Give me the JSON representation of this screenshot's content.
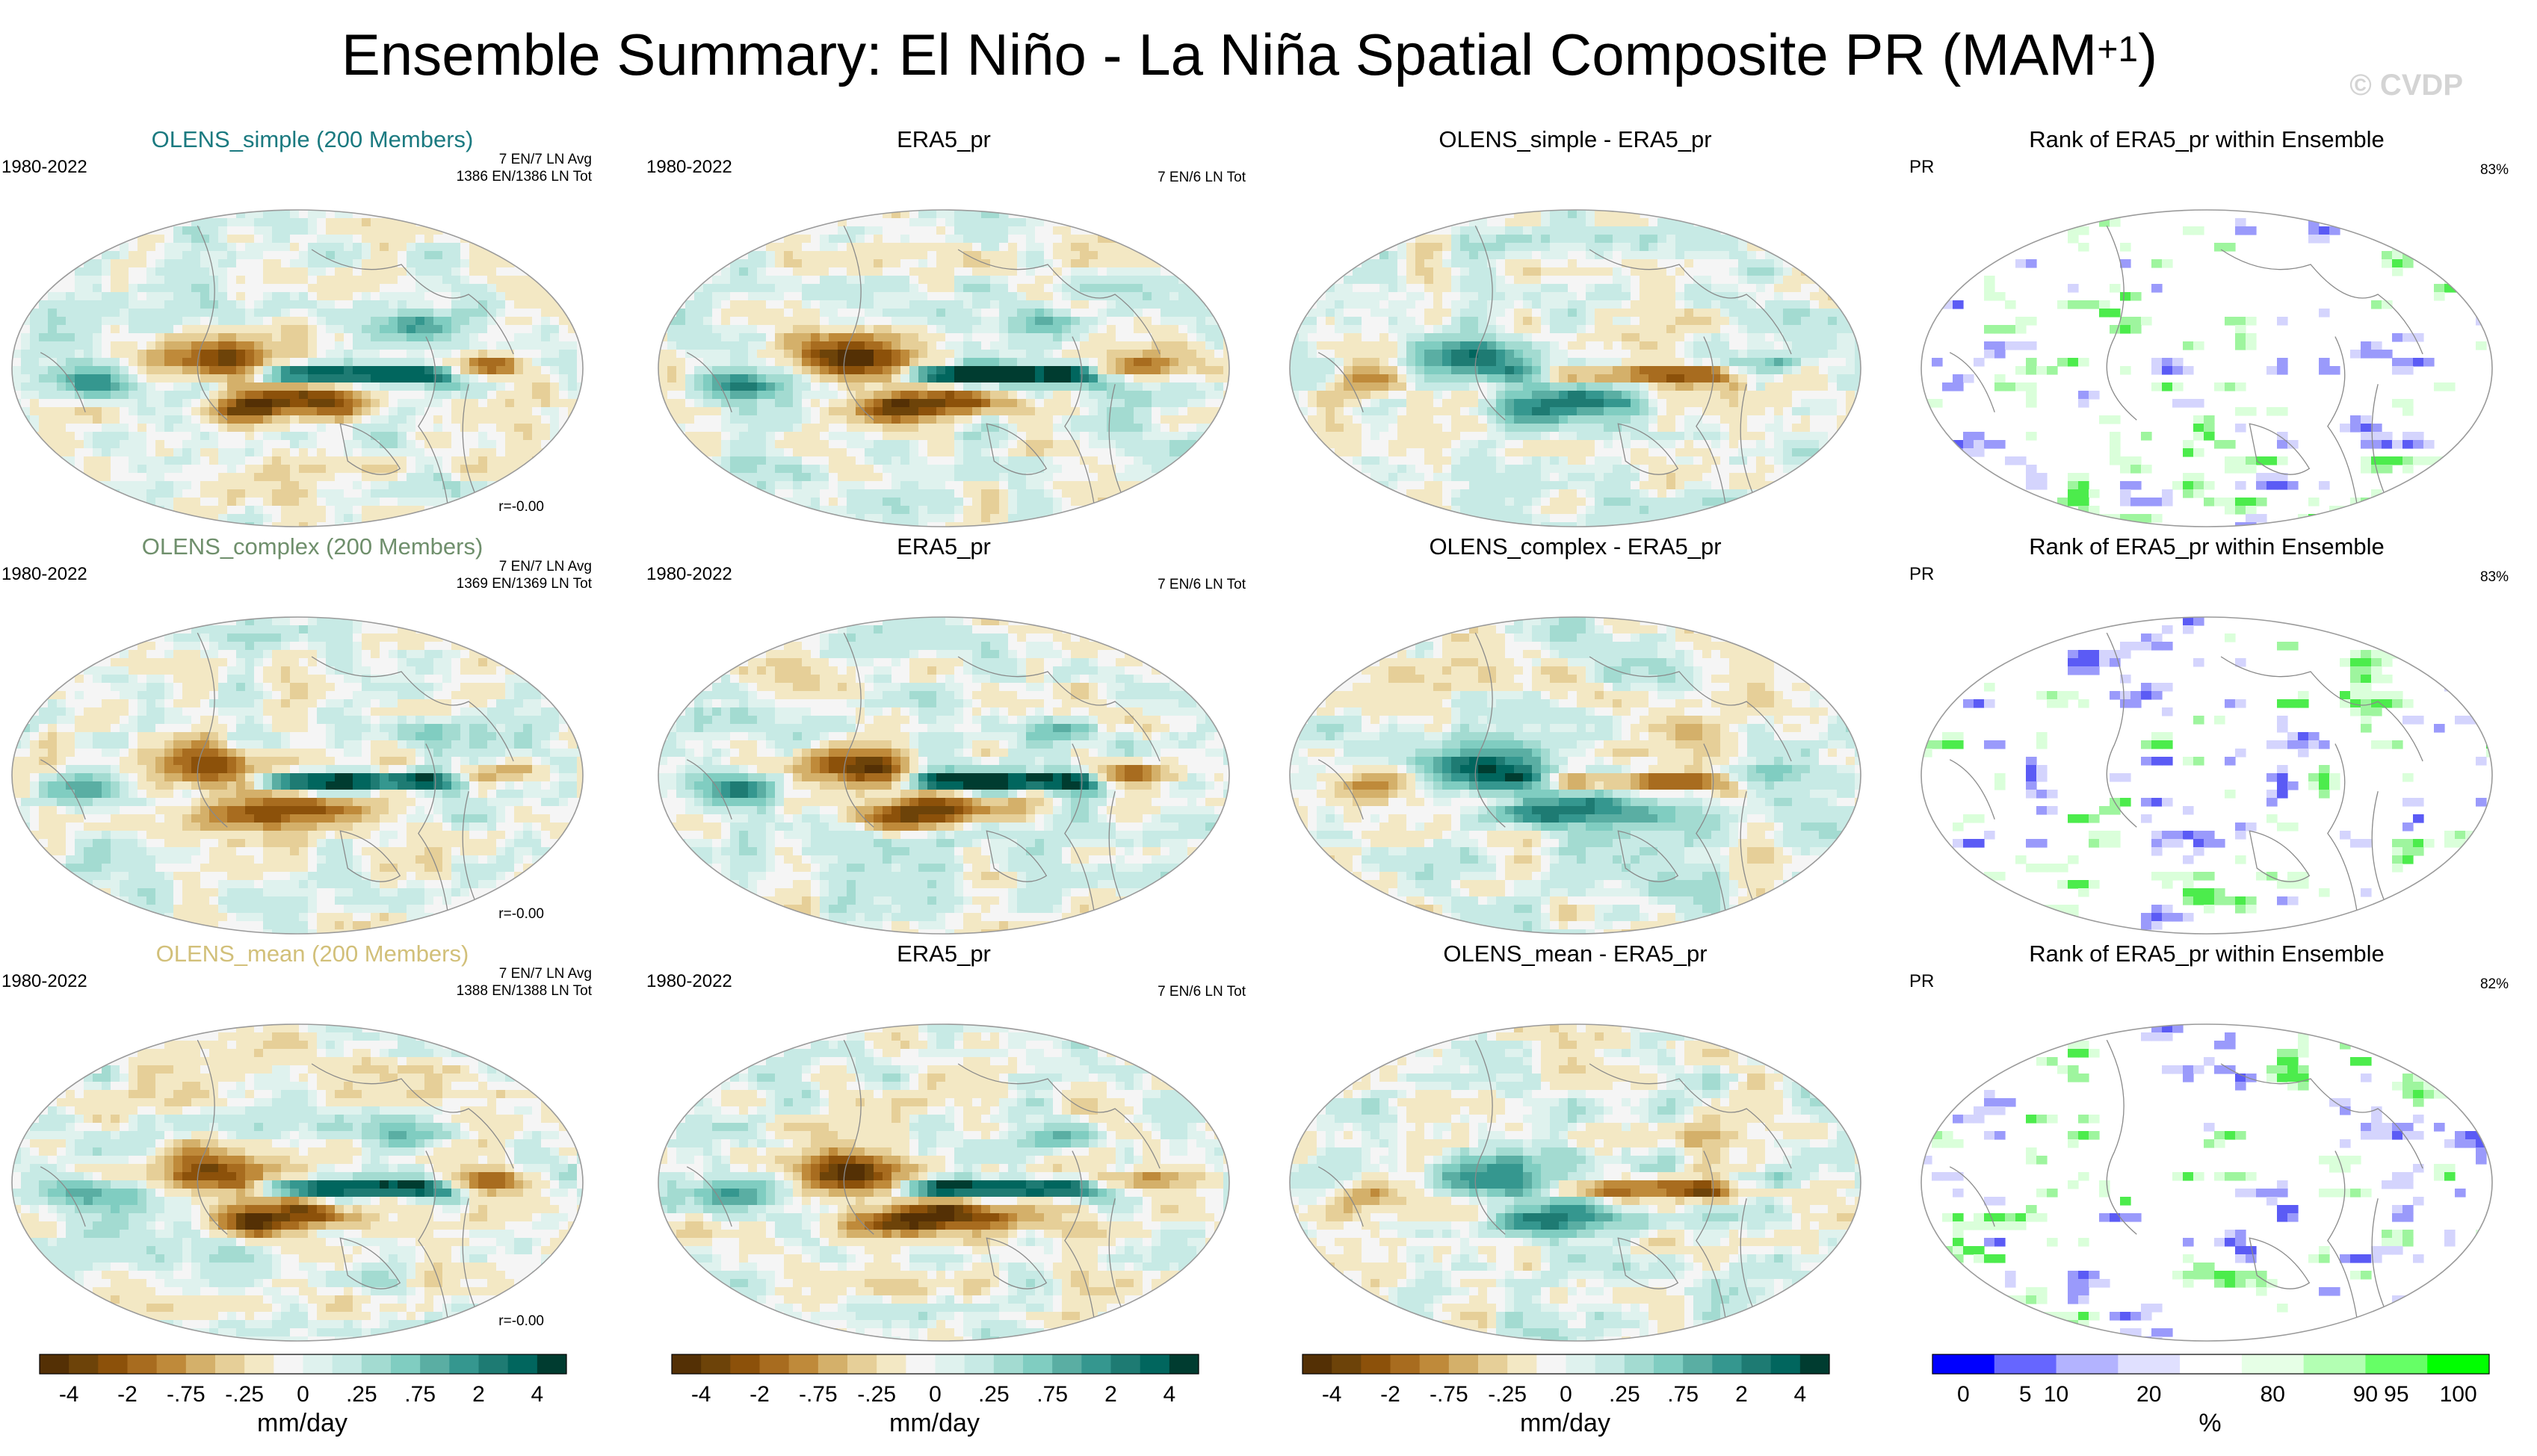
{
  "figure": {
    "title_main": "Ensemble Summary: El Niño - La Niña Spatial Composite PR (MAM",
    "title_sup": "+1",
    "title_close": ")",
    "watermark": "© CVDP"
  },
  "chart_data": [
    {
      "type": "heatmap",
      "map_kind": "model",
      "title": "OLENS_simple (200 Members)",
      "title_color": "#1b7a80",
      "years": "1980-2022",
      "info_line1": "7 EN/7 LN Avg",
      "info_line2": "1386 EN/1386 LN Tot",
      "r_value": "r=-0.00",
      "units": "mm/day"
    },
    {
      "type": "heatmap",
      "map_kind": "obs",
      "title": "ERA5_pr",
      "title_color": "#000000",
      "years": "1980-2022",
      "info_line1": "7 EN/6 LN Tot",
      "units": "mm/day"
    },
    {
      "type": "heatmap",
      "map_kind": "diff",
      "title": "OLENS_simple - ERA5_pr",
      "title_color": "#000000",
      "units": "mm/day"
    },
    {
      "type": "heatmap",
      "map_kind": "rank",
      "title": "Rank of ERA5_pr within Ensemble",
      "title_color": "#000000",
      "label_left": "PR",
      "label_right": "83%",
      "units": "%"
    },
    {
      "type": "heatmap",
      "map_kind": "model",
      "title": "OLENS_complex (200 Members)",
      "title_color": "#6f8f6c",
      "years": "1980-2022",
      "info_line1": "7 EN/7 LN Avg",
      "info_line2": "1369 EN/1369 LN Tot",
      "r_value": "r=-0.00",
      "units": "mm/day"
    },
    {
      "type": "heatmap",
      "map_kind": "obs",
      "title": "ERA5_pr",
      "title_color": "#000000",
      "years": "1980-2022",
      "info_line1": "7 EN/6 LN Tot",
      "units": "mm/day"
    },
    {
      "type": "heatmap",
      "map_kind": "diff",
      "title": "OLENS_complex - ERA5_pr",
      "title_color": "#000000",
      "units": "mm/day"
    },
    {
      "type": "heatmap",
      "map_kind": "rank",
      "title": "Rank of ERA5_pr within Ensemble",
      "title_color": "#000000",
      "label_left": "PR",
      "label_right": "83%",
      "units": "%"
    },
    {
      "type": "heatmap",
      "map_kind": "model",
      "title": "OLENS_mean (200 Members)",
      "title_color": "#d2c07a",
      "years": "1980-2022",
      "info_line1": "7 EN/7 LN Avg",
      "info_line2": "1388 EN/1388 LN Tot",
      "r_value": "r=-0.00",
      "units": "mm/day"
    },
    {
      "type": "heatmap",
      "map_kind": "obs",
      "title": "ERA5_pr",
      "title_color": "#000000",
      "years": "1980-2022",
      "info_line1": "7 EN/6 LN Tot",
      "units": "mm/day"
    },
    {
      "type": "heatmap",
      "map_kind": "diff",
      "title": "OLENS_mean - ERA5_pr",
      "title_color": "#000000",
      "units": "mm/day"
    },
    {
      "type": "heatmap",
      "map_kind": "rank",
      "title": "Rank of ERA5_pr within Ensemble",
      "title_color": "#000000",
      "label_left": "PR",
      "label_right": "82%",
      "units": "%"
    }
  ],
  "colorbars": [
    {
      "kind": "pr",
      "unit": "mm/day",
      "colors": [
        "#543005",
        "#6d4309",
        "#8c510a",
        "#a86c1f",
        "#bf8a3a",
        "#d4b06a",
        "#e6cf98",
        "#f3e8c4",
        "#f5f5f5",
        "#dff2ee",
        "#c7eae5",
        "#a3dbd1",
        "#80cdc1",
        "#5aaea3",
        "#35978f",
        "#1e7b73",
        "#01665e",
        "#003c30"
      ],
      "ticks": [
        "-4",
        "-2",
        "-.75",
        "-.25",
        "0",
        ".25",
        ".75",
        "2",
        "4"
      ]
    },
    {
      "kind": "pr",
      "unit": "mm/day",
      "colors": [
        "#543005",
        "#6d4309",
        "#8c510a",
        "#a86c1f",
        "#bf8a3a",
        "#d4b06a",
        "#e6cf98",
        "#f3e8c4",
        "#f5f5f5",
        "#dff2ee",
        "#c7eae5",
        "#a3dbd1",
        "#80cdc1",
        "#5aaea3",
        "#35978f",
        "#1e7b73",
        "#01665e",
        "#003c30"
      ],
      "ticks": [
        "-4",
        "-2",
        "-.75",
        "-.25",
        "0",
        ".25",
        ".75",
        "2",
        "4"
      ]
    },
    {
      "kind": "pr",
      "unit": "mm/day",
      "colors": [
        "#543005",
        "#6d4309",
        "#8c510a",
        "#a86c1f",
        "#bf8a3a",
        "#d4b06a",
        "#e6cf98",
        "#f3e8c4",
        "#f5f5f5",
        "#dff2ee",
        "#c7eae5",
        "#a3dbd1",
        "#80cdc1",
        "#5aaea3",
        "#35978f",
        "#1e7b73",
        "#01665e",
        "#003c30"
      ],
      "ticks": [
        "-4",
        "-2",
        "-.75",
        "-.25",
        "0",
        ".25",
        ".75",
        "2",
        "4"
      ]
    },
    {
      "kind": "rank",
      "unit": "%",
      "colors": [
        "#0000ff",
        "#6666ff",
        "#b3b3ff",
        "#e0e0ff",
        "#ffffff",
        "#e6ffe6",
        "#b3ffb3",
        "#66ff66",
        "#00ff00"
      ],
      "ticks": [
        "0",
        "5",
        "10",
        "20",
        "80",
        "90",
        "95",
        "100"
      ],
      "tick_positions": [
        0.5,
        1.5,
        2.0,
        3.5,
        5.5,
        7.0,
        7.5,
        8.5
      ],
      "boundaries": [
        0,
        5,
        10,
        20,
        80,
        90,
        95,
        100
      ]
    }
  ]
}
